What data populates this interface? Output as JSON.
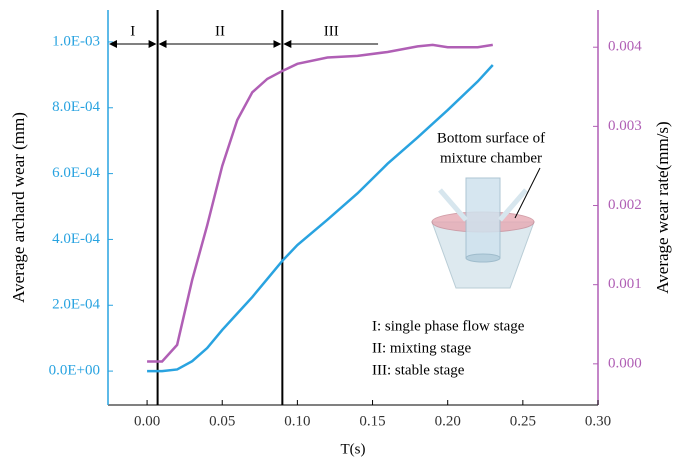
{
  "chart_data": {
    "type": "line",
    "x_label": "T(s)",
    "y_label": "Average archard wear (mm)",
    "y2_label": "Average wear rate(mm/s)",
    "xlim": [
      -0.026,
      0.3
    ],
    "xticks": [
      {
        "value": 0,
        "label": "0.00"
      },
      {
        "value": 0.05,
        "label": "0.05"
      },
      {
        "value": 0.1,
        "label": "0.10"
      },
      {
        "value": 0.15,
        "label": "0.15"
      },
      {
        "value": 0.2,
        "label": "0.20"
      },
      {
        "value": 0.25,
        "label": "0.25"
      },
      {
        "value": 0.3,
        "label": "0.30"
      }
    ],
    "ylim": [
      -0.000103,
      0.001097
    ],
    "yticks": [
      {
        "value": 0,
        "label": "0.0E+00"
      },
      {
        "value": 0.0002,
        "label": "2.0E-04"
      },
      {
        "value": 0.0004,
        "label": "4.0E-04"
      },
      {
        "value": 0.0006,
        "label": "6.0E-04"
      },
      {
        "value": 0.0008,
        "label": "8.0E-04"
      },
      {
        "value": 0.001,
        "label": "1.0E-03"
      }
    ],
    "y2lim": [
      -0.00052,
      0.00447
    ],
    "y2ticks": [
      {
        "value": 0,
        "label": "0.000"
      },
      {
        "value": 0.001,
        "label": "0.001"
      },
      {
        "value": 0.002,
        "label": "0.002"
      },
      {
        "value": 0.003,
        "label": "0.003"
      },
      {
        "value": 0.004,
        "label": "0.004"
      }
    ],
    "y_color": "#29a3e0",
    "y2_color": "#b05fb5",
    "series": [
      {
        "color": "#29a3e0",
        "axis": "y",
        "x": [
          0,
          0.01,
          0.02,
          0.03,
          0.04,
          0.05,
          0.06,
          0.07,
          0.08,
          0.09,
          0.1,
          0.12,
          0.14,
          0.16,
          0.18,
          0.2,
          0.22,
          0.23
        ],
        "values": [
          0,
          0,
          5e-06,
          3e-05,
          7e-05,
          0.000125,
          0.000175,
          0.000225,
          0.00028,
          0.000335,
          0.000383,
          0.00046,
          0.00054,
          0.00063,
          0.00071,
          0.000793,
          0.00088,
          0.00093
        ]
      },
      {
        "color": "#b05fb5",
        "axis": "y2",
        "x": [
          0,
          0.007,
          0.01,
          0.02,
          0.03,
          0.04,
          0.05,
          0.06,
          0.07,
          0.08,
          0.09,
          0.1,
          0.12,
          0.14,
          0.16,
          0.18,
          0.19,
          0.2,
          0.22,
          0.23
        ],
        "values": [
          3e-05,
          3e-05,
          3e-05,
          0.00024,
          0.00106,
          0.00175,
          0.0025,
          0.00308,
          0.00343,
          0.0036,
          0.0037,
          0.00379,
          0.00387,
          0.00389,
          0.00394,
          0.00401,
          0.00403,
          0.004,
          0.004,
          0.00403
        ]
      }
    ],
    "stages": [
      {
        "label": "I",
        "start": -0.026,
        "end": 0.007
      },
      {
        "label": "II",
        "start": 0.007,
        "end": 0.09
      },
      {
        "label": "III",
        "start": 0.09,
        "end": 0.155
      }
    ],
    "inset_label": [
      "Bottom surface of",
      "mixture chamber"
    ],
    "notes": [
      "I: single phase flow stage",
      "II: mixting stage",
      "III: stable stage"
    ]
  }
}
